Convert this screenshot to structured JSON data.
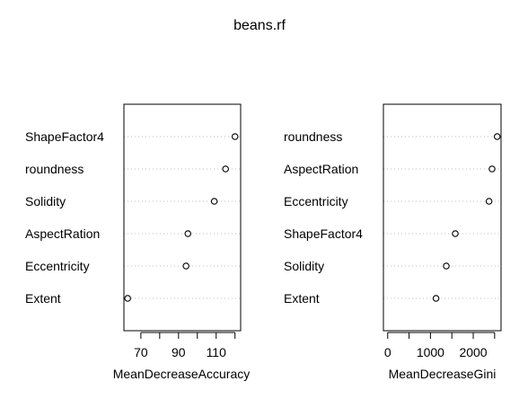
{
  "title": "beans.rf",
  "chart_data": [
    {
      "type": "scatter",
      "style": "dotchart",
      "xlabel": "MeanDecreaseAccuracy",
      "ylabel": "",
      "xlim": [
        61,
        123
      ],
      "xticks": [
        70,
        90,
        110
      ],
      "minor_ticks": [
        80,
        100,
        120
      ],
      "grid": false,
      "categories": [
        "ShapeFactor4",
        "roundness",
        "Solidity",
        "AspectRation",
        "Eccentricity",
        "Extent"
      ],
      "values": [
        120,
        115,
        109,
        95,
        94,
        63
      ]
    },
    {
      "type": "scatter",
      "style": "dotchart",
      "xlabel": "MeanDecreaseGini",
      "ylabel": "",
      "xlim": [
        -100,
        2650
      ],
      "xticks": [
        0,
        1000,
        2000
      ],
      "minor_ticks": [
        500,
        1500,
        2500
      ],
      "grid": false,
      "categories": [
        "roundness",
        "AspectRation",
        "Eccentricity",
        "ShapeFactor4",
        "Solidity",
        "Extent"
      ],
      "values": [
        2560,
        2440,
        2370,
        1580,
        1370,
        1130
      ]
    }
  ]
}
